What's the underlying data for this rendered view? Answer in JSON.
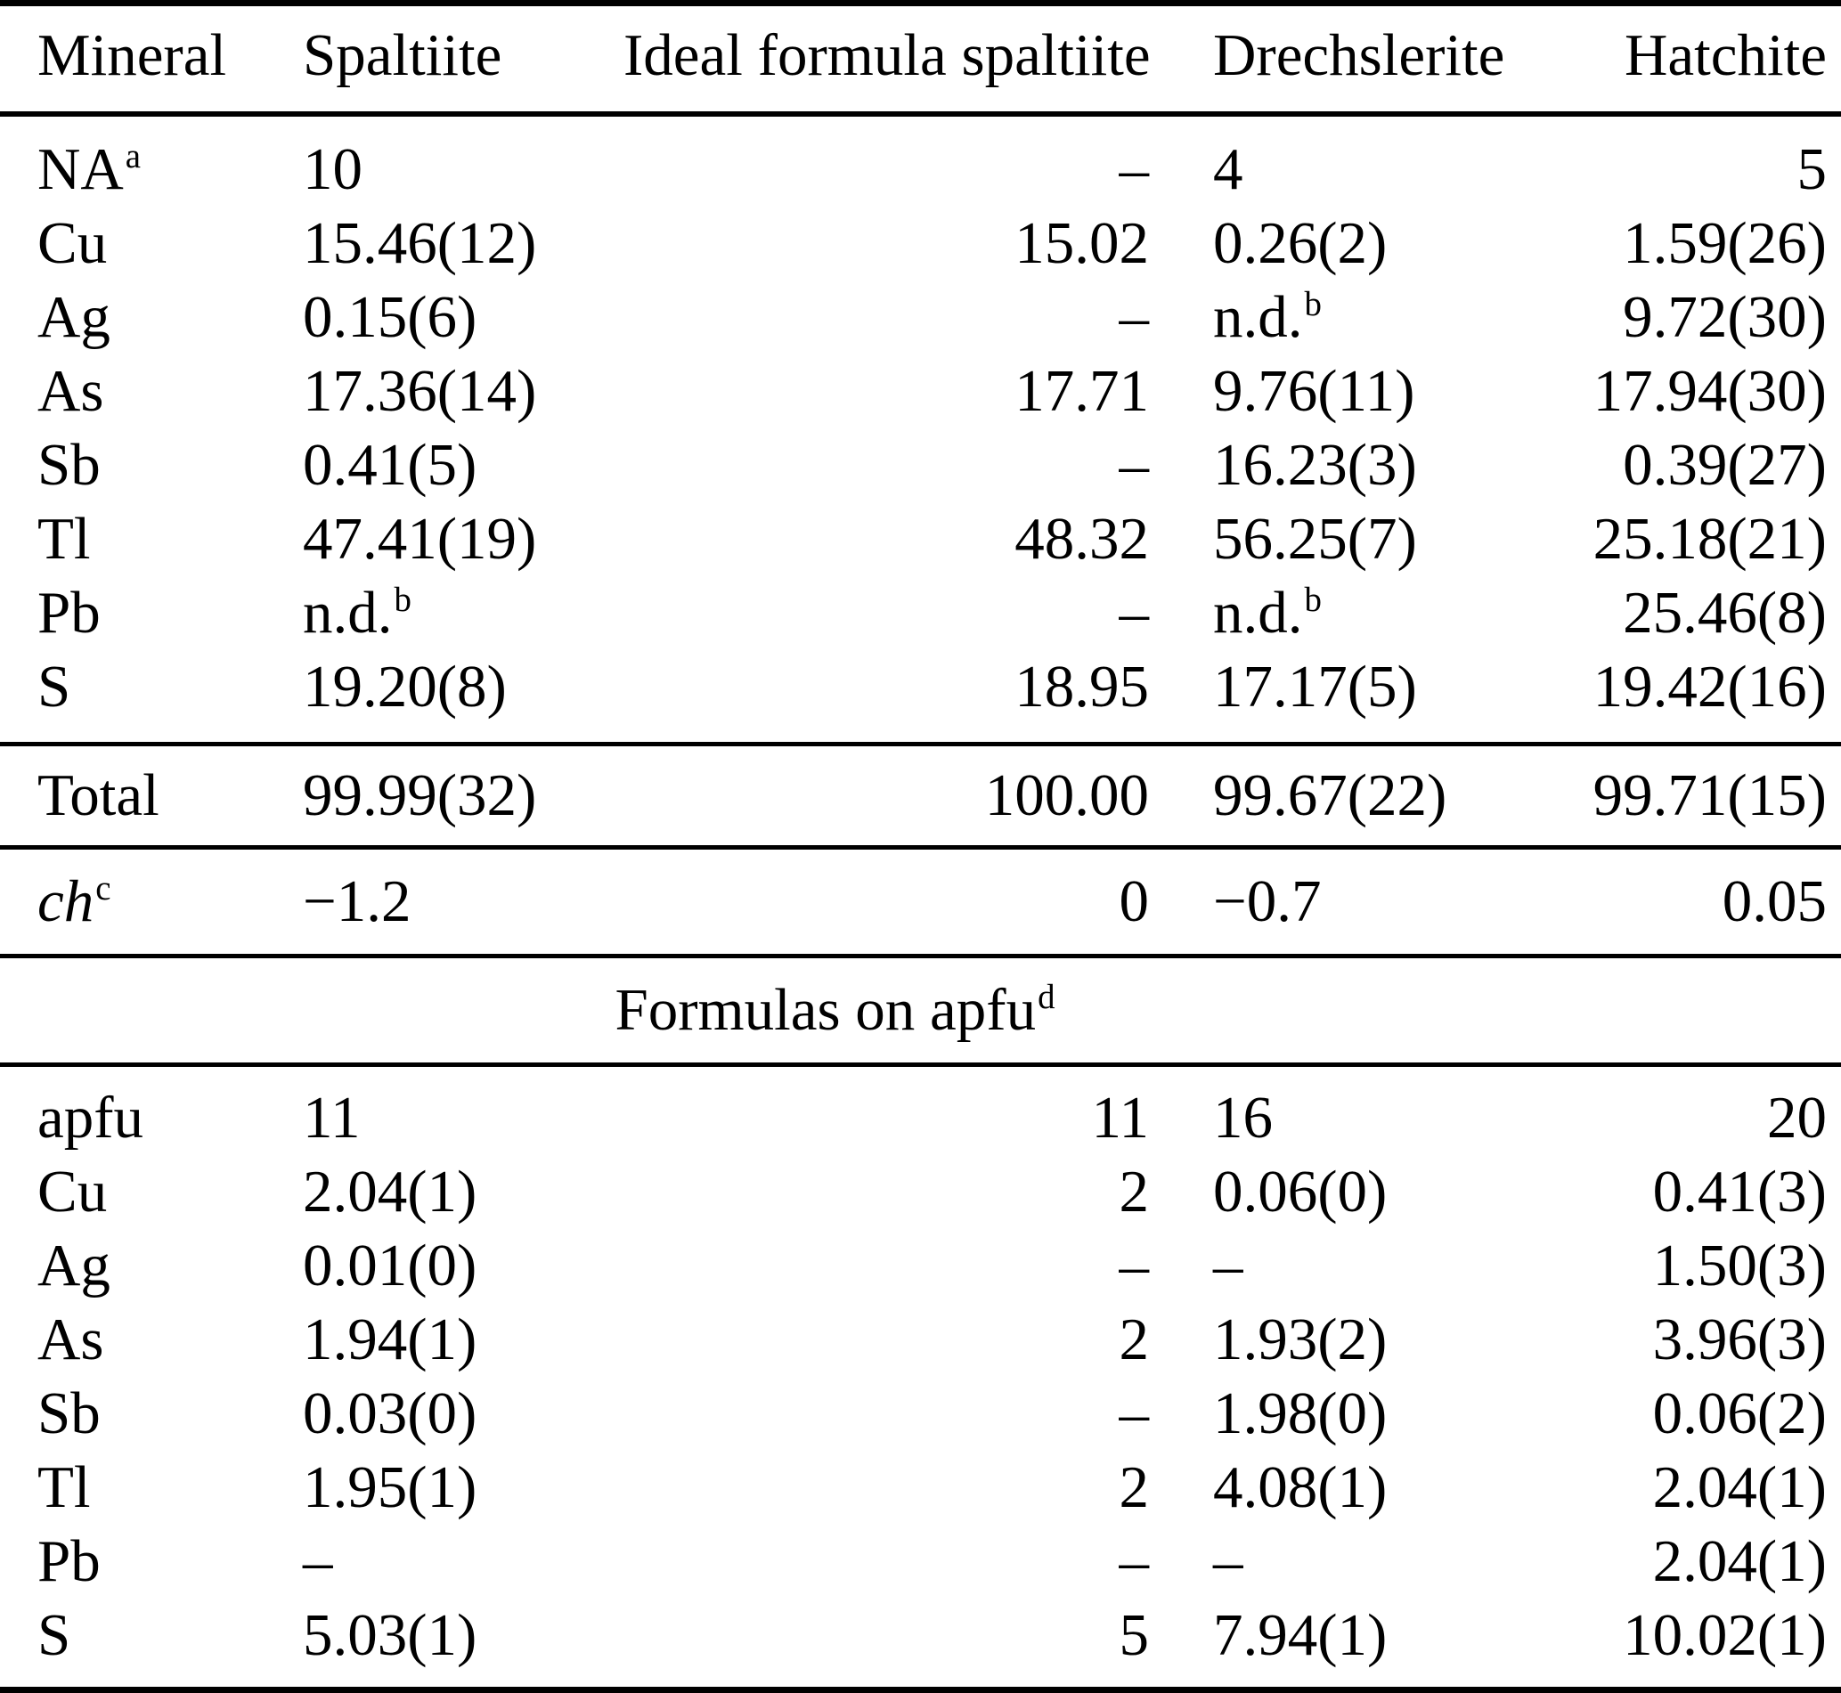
{
  "colors": {
    "background": "#ffffff",
    "text": "#000000",
    "rules": "#000000"
  },
  "table": {
    "columns": [
      "Mineral",
      "Spaltiite",
      "Ideal formula spaltiite",
      "Drechslerite",
      "Hatchite"
    ],
    "value_column_keys": [
      "spaltiite",
      "ideal-formula-spaltiite",
      "drechslerite",
      "hatchite"
    ],
    "composition_rows": [
      {
        "el": "NA^a",
        "v": [
          "10",
          "–",
          "4",
          "5"
        ]
      },
      {
        "el": "Cu",
        "v": [
          "15.46(12)",
          "15.02",
          "0.26(2)",
          "1.59(26)"
        ]
      },
      {
        "el": "Ag",
        "v": [
          "0.15(6)",
          "–",
          "n.d.^b",
          "9.72(30)"
        ]
      },
      {
        "el": "As",
        "v": [
          "17.36(14)",
          "17.71",
          "9.76(11)",
          "17.94(30)"
        ]
      },
      {
        "el": "Sb",
        "v": [
          "0.41(5)",
          "–",
          "16.23(3)",
          "0.39(27)"
        ]
      },
      {
        "el": "Tl",
        "v": [
          "47.41(19)",
          "48.32",
          "56.25(7)",
          "25.18(21)"
        ]
      },
      {
        "el": "Pb",
        "v": [
          "n.d.^b",
          "–",
          "n.d.^b",
          "25.46(8)"
        ]
      },
      {
        "el": "S",
        "v": [
          "19.20(8)",
          "18.95",
          "17.17(5)",
          "19.42(16)"
        ]
      }
    ],
    "total_row": {
      "el": "Total",
      "v": [
        "99.99(32)",
        "100.00",
        "99.67(22)",
        "99.71(15)"
      ]
    },
    "ch_row": {
      "el": "ch^c",
      "italic": true,
      "v": [
        "−1.2",
        "0",
        "−0.7",
        "0.05"
      ]
    },
    "section_title": "Formulas on apfu^d",
    "apfu_rows": [
      {
        "el": "apfu",
        "v": [
          "11",
          "11",
          "16",
          "20"
        ]
      },
      {
        "el": "Cu",
        "v": [
          "2.04(1)",
          "2",
          "0.06(0)",
          "0.41(3)"
        ]
      },
      {
        "el": "Ag",
        "v": [
          "0.01(0)",
          "–",
          "–",
          "1.50(3)"
        ]
      },
      {
        "el": "As",
        "v": [
          "1.94(1)",
          "2",
          "1.93(2)",
          "3.96(3)"
        ]
      },
      {
        "el": "Sb",
        "v": [
          "0.03(0)",
          "–",
          "1.98(0)",
          "0.06(2)"
        ]
      },
      {
        "el": "Tl",
        "v": [
          "1.95(1)",
          "2",
          "4.08(1)",
          "2.04(1)"
        ]
      },
      {
        "el": "Pb",
        "v": [
          "–",
          "–",
          "–",
          "2.04(1)"
        ]
      },
      {
        "el": "S",
        "v": [
          "5.03(1)",
          "5",
          "7.94(1)",
          "10.02(1)"
        ]
      }
    ]
  }
}
